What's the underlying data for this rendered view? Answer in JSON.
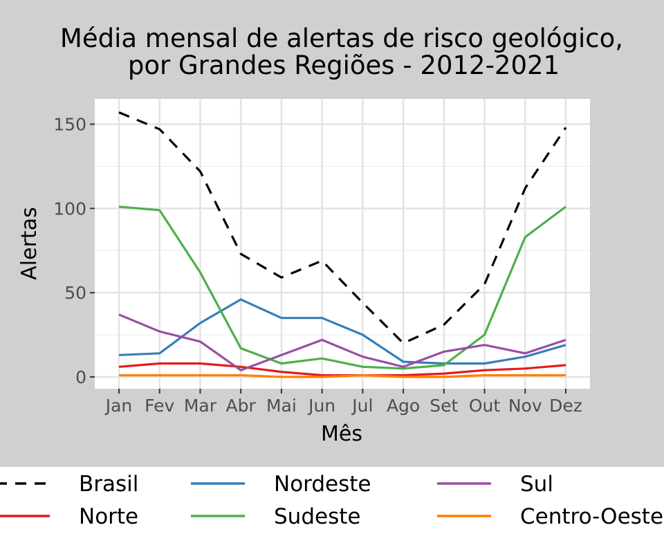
{
  "chart_data": {
    "type": "line",
    "title": "Média mensal de alertas de risco geológico,",
    "subtitle": "por Grandes Regiões - 2012-2021",
    "xlabel": "Mês",
    "ylabel": "Alertas",
    "categories": [
      "Jan",
      "Fev",
      "Mar",
      "Abr",
      "Mai",
      "Jun",
      "Jul",
      "Ago",
      "Set",
      "Out",
      "Nov",
      "Dez"
    ],
    "ylim": [
      -7,
      165
    ],
    "yticks": [
      0,
      50,
      100,
      150
    ],
    "grid": true,
    "legend_position": "bottom",
    "series": [
      {
        "name": "Brasil",
        "color": "#000000",
        "dash": true,
        "values": [
          157,
          147,
          122,
          73,
          59,
          69,
          44,
          20,
          31,
          55,
          112,
          148
        ]
      },
      {
        "name": "Norte",
        "color": "#e41a1c",
        "dash": false,
        "values": [
          6,
          8,
          8,
          6,
          3,
          1,
          1,
          1,
          2,
          4,
          5,
          7
        ]
      },
      {
        "name": "Nordeste",
        "color": "#377eb8",
        "dash": false,
        "values": [
          13,
          14,
          32,
          46,
          35,
          35,
          25,
          9,
          8,
          8,
          12,
          19
        ]
      },
      {
        "name": "Sudeste",
        "color": "#4daf4a",
        "dash": false,
        "values": [
          101,
          99,
          62,
          17,
          8,
          11,
          6,
          5,
          7,
          25,
          83,
          101
        ]
      },
      {
        "name": "Sul",
        "color": "#984ea3",
        "dash": false,
        "values": [
          37,
          27,
          21,
          4,
          13,
          22,
          12,
          6,
          15,
          19,
          14,
          22
        ]
      },
      {
        "name": "Centro-Oeste",
        "color": "#ff7f00",
        "dash": false,
        "values": [
          1,
          1,
          1,
          1,
          0,
          0,
          1,
          0,
          0,
          1,
          1,
          1
        ]
      }
    ]
  }
}
